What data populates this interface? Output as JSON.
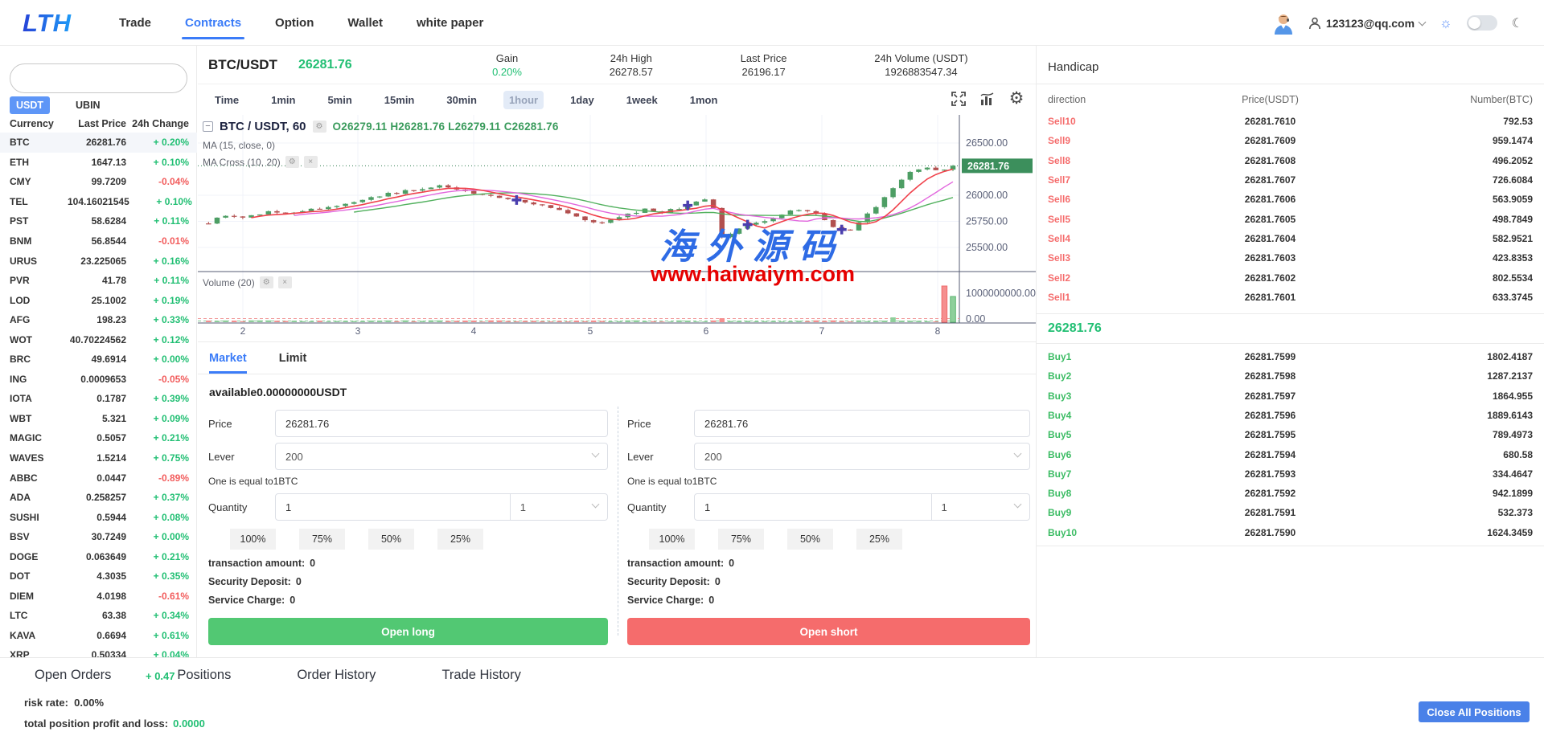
{
  "topnav": {
    "logo": "LTH",
    "items": [
      {
        "label": "Trade",
        "active": false
      },
      {
        "label": "Contracts",
        "active": true
      },
      {
        "label": "Option",
        "active": false
      },
      {
        "label": "Wallet",
        "active": false
      },
      {
        "label": "white paper",
        "active": false
      }
    ],
    "user_email": "123123@qq.com",
    "sun_icon": "☼",
    "moon_icon": "☾"
  },
  "sidebar": {
    "search_placeholder": "",
    "tabs": [
      {
        "label": "USDT",
        "active": true
      },
      {
        "label": "UBIN",
        "active": false
      }
    ],
    "columns": [
      "Currency",
      "Last Price",
      "24h Change"
    ],
    "rows": [
      {
        "name": "BTC",
        "price": "26281.76",
        "change": "+ 0.20%"
      },
      {
        "name": "ETH",
        "price": "1647.13",
        "change": "+ 0.10%"
      },
      {
        "name": "CMY",
        "price": "99.7209",
        "change": "-0.04%"
      },
      {
        "name": "TEL",
        "price": "104.16021545",
        "change": "+ 0.10%"
      },
      {
        "name": "PST",
        "price": "58.6284",
        "change": "+ 0.11%"
      },
      {
        "name": "BNM",
        "price": "56.8544",
        "change": "-0.01%"
      },
      {
        "name": "URUS",
        "price": "23.225065",
        "change": "+ 0.16%"
      },
      {
        "name": "PVR",
        "price": "41.78",
        "change": "+ 0.11%"
      },
      {
        "name": "LOD",
        "price": "25.1002",
        "change": "+ 0.19%"
      },
      {
        "name": "AFG",
        "price": "198.23",
        "change": "+ 0.33%"
      },
      {
        "name": "WOT",
        "price": "40.70224562",
        "change": "+ 0.12%"
      },
      {
        "name": "BRC",
        "price": "49.6914",
        "change": "+ 0.00%"
      },
      {
        "name": "ING",
        "price": "0.0009653",
        "change": "-0.05%"
      },
      {
        "name": "IOTA",
        "price": "0.1787",
        "change": "+ 0.39%"
      },
      {
        "name": "WBT",
        "price": "5.321",
        "change": "+ 0.09%"
      },
      {
        "name": "MAGIC",
        "price": "0.5057",
        "change": "+ 0.21%"
      },
      {
        "name": "WAVES",
        "price": "1.5214",
        "change": "+ 0.75%"
      },
      {
        "name": "ABBC",
        "price": "0.0447",
        "change": "-0.89%"
      },
      {
        "name": "ADA",
        "price": "0.258257",
        "change": "+ 0.37%"
      },
      {
        "name": "SUSHI",
        "price": "0.5944",
        "change": "+ 0.08%"
      },
      {
        "name": "BSV",
        "price": "30.7249",
        "change": "+ 0.00%"
      },
      {
        "name": "DOGE",
        "price": "0.063649",
        "change": "+ 0.21%"
      },
      {
        "name": "DOT",
        "price": "4.3035",
        "change": "+ 0.35%"
      },
      {
        "name": "DIEM",
        "price": "4.0198",
        "change": "-0.61%"
      },
      {
        "name": "LTC",
        "price": "63.38",
        "change": "+ 0.34%"
      },
      {
        "name": "KAVA",
        "price": "0.6694",
        "change": "+ 0.61%"
      },
      {
        "name": "XRP",
        "price": "0.50334",
        "change": "+ 0.04%"
      }
    ]
  },
  "market_header": {
    "pair": "BTC/USDT",
    "price": "26281.76",
    "stats": [
      {
        "label": "Gain",
        "value": "0.20%",
        "green": true
      },
      {
        "label": "24h High",
        "value": "26278.57",
        "green": false
      },
      {
        "label": "Last Price",
        "value": "26196.17",
        "green": false
      },
      {
        "label": "24h Volume  (USDT)",
        "value": "1926883547.34",
        "green": false
      }
    ]
  },
  "intervals": [
    "Time",
    "1min",
    "5min",
    "15min",
    "30min",
    "1hour",
    "1day",
    "1week",
    "1mon"
  ],
  "active_interval": "1hour",
  "chart_data": {
    "type": "candlestick",
    "symbol_legend": "BTC / USDT, 60",
    "ohlc_legend": "O26279.11  H26281.76  L26279.11  C26281.76",
    "ma_legend": "MA (15, close, 0)",
    "ma_cross_legend": "MA Cross (10, 20)",
    "volume_legend": "Volume (20)",
    "watermark_cn": "海外源码",
    "watermark_url": "www.haiwaiym.com",
    "price_tag": "26281.76",
    "y_axis": [
      {
        "label": "26500.00",
        "price": 26500
      },
      {
        "label": "26000.00",
        "price": 26000
      },
      {
        "label": "25750.00",
        "price": 25750
      },
      {
        "label": "25500.00",
        "price": 25500
      }
    ],
    "vol_axis": [
      "1000000000.00",
      "0.00"
    ],
    "x_axis": [
      "2",
      "3",
      "4",
      "5",
      "6",
      "7",
      "8"
    ],
    "n_candles": 88,
    "keypoints": [
      [
        0,
        25740
      ],
      [
        0.02,
        25800
      ],
      [
        0.05,
        25790
      ],
      [
        0.08,
        25840
      ],
      [
        0.11,
        25820
      ],
      [
        0.14,
        25870
      ],
      [
        0.17,
        25900
      ],
      [
        0.2,
        25945
      ],
      [
        0.23,
        26000
      ],
      [
        0.26,
        26030
      ],
      [
        0.29,
        26070
      ],
      [
        0.31,
        26085
      ],
      [
        0.34,
        26040
      ],
      [
        0.37,
        26000
      ],
      [
        0.4,
        25960
      ],
      [
        0.43,
        25930
      ],
      [
        0.46,
        25880
      ],
      [
        0.49,
        25820
      ],
      [
        0.52,
        25720
      ],
      [
        0.54,
        25760
      ],
      [
        0.57,
        25830
      ],
      [
        0.59,
        25870
      ],
      [
        0.61,
        25840
      ],
      [
        0.63,
        25870
      ],
      [
        0.65,
        25930
      ],
      [
        0.67,
        25960
      ],
      [
        0.68,
        25850
      ],
      [
        0.69,
        25580
      ],
      [
        0.7,
        25620
      ],
      [
        0.72,
        25700
      ],
      [
        0.74,
        25750
      ],
      [
        0.76,
        25790
      ],
      [
        0.78,
        25840
      ],
      [
        0.8,
        25870
      ],
      [
        0.82,
        25800
      ],
      [
        0.84,
        25700
      ],
      [
        0.86,
        25650
      ],
      [
        0.88,
        25780
      ],
      [
        0.9,
        25920
      ],
      [
        0.92,
        26080
      ],
      [
        0.94,
        26220
      ],
      [
        0.96,
        26260
      ],
      [
        0.98,
        26230
      ],
      [
        1,
        26281.76
      ]
    ],
    "last_close": 26281.76,
    "colors": {
      "up": "#4d9e64",
      "down": "#b2504f",
      "ma_fast": "#f0414b",
      "ma_mid": "#e266dd",
      "ma_slow": "#53b15f",
      "cross_marker": "#4b3fae",
      "vol_up": "#8ecf9b",
      "vol_down": "#f58f8f",
      "tag_bg": "#3c8f5c"
    }
  },
  "order_form": {
    "tabs": [
      {
        "label": "Market",
        "active": true
      },
      {
        "label": "Limit",
        "active": false
      }
    ],
    "available": "available0.00000000USDT",
    "price_label": "Price",
    "lever_label": "Lever",
    "quantity_label": "Quantity",
    "hint": "One is equal to1BTC",
    "pct_buttons": [
      "100%",
      "75%",
      "50%",
      "25%"
    ],
    "info_labels": [
      "transaction amount:",
      "Security Deposit:",
      "Service Charge:"
    ],
    "panels": [
      {
        "price": "26281.76",
        "lever": "200",
        "qty": "1",
        "qty_unit": "1",
        "transaction": "0",
        "deposit": "0",
        "charge": "0",
        "button": "Open long"
      },
      {
        "price": "26281.76",
        "lever": "200",
        "qty": "1",
        "qty_unit": "1",
        "transaction": "0",
        "deposit": "0",
        "charge": "0",
        "button": "Open short"
      }
    ]
  },
  "handicap": {
    "title": "Handicap",
    "columns": [
      "direction",
      "Price(USDT)",
      "Number(BTC)"
    ],
    "sells": [
      {
        "label": "Sell10",
        "price": "26281.7610",
        "number": "792.53"
      },
      {
        "label": "Sell9",
        "price": "26281.7609",
        "number": "959.1474"
      },
      {
        "label": "Sell8",
        "price": "26281.7608",
        "number": "496.2052"
      },
      {
        "label": "Sell7",
        "price": "26281.7607",
        "number": "726.6084"
      },
      {
        "label": "Sell6",
        "price": "26281.7606",
        "number": "563.9059"
      },
      {
        "label": "Sell5",
        "price": "26281.7605",
        "number": "498.7849"
      },
      {
        "label": "Sell4",
        "price": "26281.7604",
        "number": "582.9521"
      },
      {
        "label": "Sell3",
        "price": "26281.7603",
        "number": "423.8353"
      },
      {
        "label": "Sell2",
        "price": "26281.7602",
        "number": "802.5534"
      },
      {
        "label": "Sell1",
        "price": "26281.7601",
        "number": "633.3745"
      }
    ],
    "current_price": "26281.76",
    "buys": [
      {
        "label": "Buy1",
        "price": "26281.7599",
        "number": "1802.4187"
      },
      {
        "label": "Buy2",
        "price": "26281.7598",
        "number": "1287.2137"
      },
      {
        "label": "Buy3",
        "price": "26281.7597",
        "number": "1864.955"
      },
      {
        "label": "Buy4",
        "price": "26281.7596",
        "number": "1889.6143"
      },
      {
        "label": "Buy5",
        "price": "26281.7595",
        "number": "789.4973"
      },
      {
        "label": "Buy6",
        "price": "26281.7594",
        "number": "680.58"
      },
      {
        "label": "Buy7",
        "price": "26281.7593",
        "number": "334.4647"
      },
      {
        "label": "Buy8",
        "price": "26281.7592",
        "number": "942.1899"
      },
      {
        "label": "Buy9",
        "price": "26281.7591",
        "number": "532.373"
      },
      {
        "label": "Buy10",
        "price": "26281.7590",
        "number": "1624.3459"
      }
    ]
  },
  "bottom": {
    "tabs": [
      "Open Orders",
      "Positions",
      "Order History",
      "Trade History"
    ],
    "artifact_change": "+ 0.47",
    "risk_label": "risk rate:",
    "risk_value": "0.00%",
    "pnl_label": "total position profit and loss:",
    "pnl_value": "0.0000",
    "close_all": "Close All Positions"
  }
}
